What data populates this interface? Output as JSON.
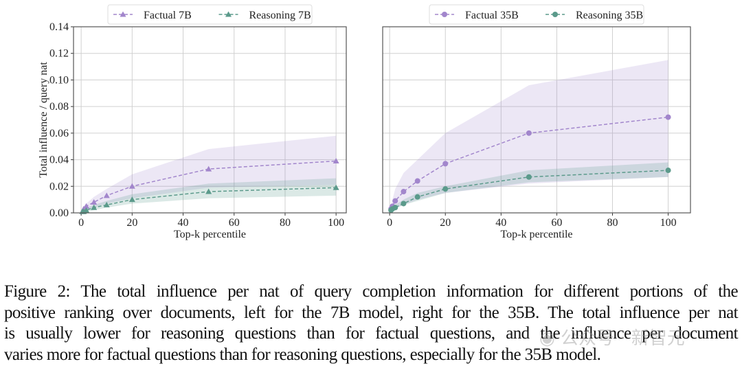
{
  "chart_data": [
    {
      "type": "line",
      "xlabel": "Top-k percentile",
      "ylabel": "Total influence / query nat",
      "xlim": [
        -3,
        104
      ],
      "ylim": [
        0,
        0.14
      ],
      "xticks": [
        "0",
        "20",
        "40",
        "60",
        "80",
        "100"
      ],
      "yticks": [
        "0.00",
        "0.02",
        "0.04",
        "0.06",
        "0.08",
        "0.10",
        "0.12",
        "0.14"
      ],
      "grid": true,
      "legend": "top-center, outside",
      "x": [
        0.5,
        1,
        2,
        5,
        10,
        20,
        50,
        100
      ],
      "series": [
        {
          "name": "Factual 7B",
          "marker": "triangle",
          "color": "#a286cc",
          "values": [
            0.001,
            0.003,
            0.005,
            0.008,
            0.013,
            0.02,
            0.033,
            0.039
          ],
          "upper": [
            0.002,
            0.005,
            0.007,
            0.012,
            0.018,
            0.029,
            0.048,
            0.058
          ],
          "lower": [
            0.0,
            0.001,
            0.002,
            0.004,
            0.007,
            0.011,
            0.019,
            0.021
          ]
        },
        {
          "name": "Reasoning 7B",
          "marker": "triangle",
          "color": "#5b9a8b",
          "values": [
            0.001,
            0.001,
            0.002,
            0.004,
            0.006,
            0.01,
            0.016,
            0.019
          ],
          "upper": [
            0.002,
            0.003,
            0.004,
            0.006,
            0.009,
            0.014,
            0.022,
            0.026
          ],
          "lower": [
            0.0,
            0.0,
            0.001,
            0.002,
            0.004,
            0.007,
            0.011,
            0.013
          ]
        }
      ]
    },
    {
      "type": "line",
      "xlabel": "Top-k percentile",
      "ylabel": "",
      "xlim": [
        -2.5,
        108
      ],
      "ylim": [
        0,
        0.14
      ],
      "xticks": [
        "0",
        "20",
        "40",
        "60",
        "80",
        "100"
      ],
      "yticks": [],
      "grid": true,
      "legend": "top-center, outside",
      "x": [
        0.5,
        1,
        2,
        5,
        10,
        20,
        50,
        100
      ],
      "series": [
        {
          "name": "Factual 35B",
          "marker": "circle",
          "color": "#a286cc",
          "values": [
            0.003,
            0.005,
            0.009,
            0.016,
            0.024,
            0.037,
            0.06,
            0.072
          ],
          "upper": [
            0.005,
            0.01,
            0.018,
            0.03,
            0.04,
            0.06,
            0.096,
            0.115
          ],
          "lower": [
            0.001,
            0.002,
            0.004,
            0.006,
            0.01,
            0.015,
            0.022,
            0.027
          ]
        },
        {
          "name": "Reasoning 35B",
          "marker": "circle",
          "color": "#5b9a8b",
          "values": [
            0.002,
            0.003,
            0.004,
            0.007,
            0.012,
            0.018,
            0.027,
            0.032
          ],
          "upper": [
            0.003,
            0.004,
            0.006,
            0.01,
            0.015,
            0.02,
            0.032,
            0.038
          ],
          "lower": [
            0.001,
            0.002,
            0.003,
            0.006,
            0.009,
            0.015,
            0.023,
            0.027
          ]
        }
      ]
    }
  ],
  "caption": [
    "Figure 2: The total influence per nat of query completion information for different portions of the",
    "positive ranking over documents, left for the 7B model, right for the 35B. The total influence per nat",
    "is usually lower for reasoning questions than for factual questions, and the influence per document",
    "varies more for factual questions than for reasoning questions, especially for the 35B model."
  ],
  "watermark": "公众号 · 新智元"
}
